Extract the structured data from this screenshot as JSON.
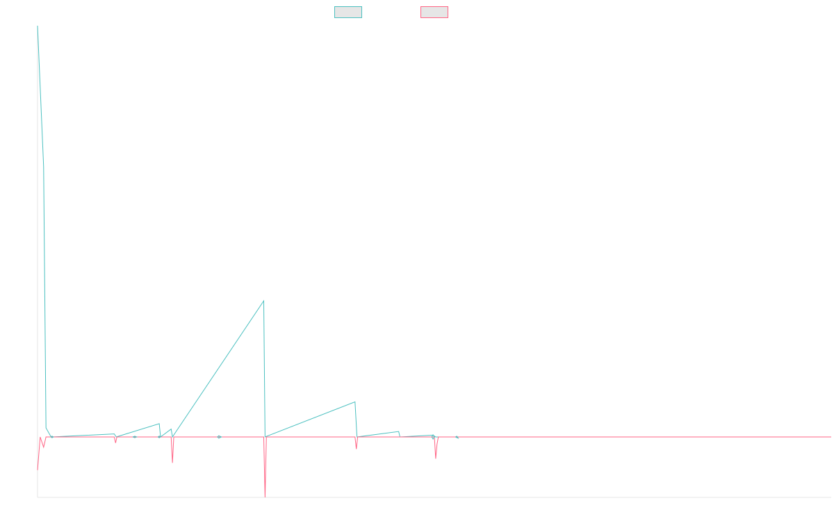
{
  "chart_data": {
    "type": "line",
    "title": "",
    "xlabel": "",
    "ylabel": "",
    "legend": {
      "placement": "top-center",
      "entries": [
        {
          "label": "",
          "color": "#4bc0c0",
          "fill": "#e6e6e6"
        },
        {
          "label": "",
          "color": "#ff6384",
          "fill": "#e6e6e6"
        }
      ]
    },
    "grid": false,
    "x_range": [
      0,
      600
    ],
    "y_range": [
      -100,
      680
    ],
    "series": [
      {
        "color": "#4bc0c0",
        "points": [
          [
            0,
            680
          ],
          [
            4.6,
            447
          ],
          [
            6.4,
            15
          ],
          [
            10,
            1
          ],
          [
            11,
            0
          ],
          [
            58,
            5
          ],
          [
            59.5,
            0
          ],
          [
            92,
            22
          ],
          [
            93,
            0
          ],
          [
            101,
            13
          ],
          [
            102,
            0
          ],
          [
            171,
            225
          ],
          [
            172,
            0
          ],
          [
            240,
            58
          ],
          [
            241.5,
            0
          ],
          [
            273,
            9
          ],
          [
            274,
            0
          ],
          [
            299,
            3
          ],
          [
            301,
            0
          ],
          [
            600,
            0
          ]
        ]
      },
      {
        "color": "#ff6384",
        "points": [
          [
            0,
            -55
          ],
          [
            2,
            0
          ],
          [
            4.6,
            -17
          ],
          [
            6.4,
            0
          ],
          [
            58,
            0
          ],
          [
            59,
            -10
          ],
          [
            60,
            0
          ],
          [
            101,
            0
          ],
          [
            102,
            -43
          ],
          [
            103,
            0
          ],
          [
            171,
            0
          ],
          [
            172,
            -100
          ],
          [
            173,
            0
          ],
          [
            240,
            0
          ],
          [
            241,
            -20
          ],
          [
            242,
            0
          ],
          [
            300,
            0
          ],
          [
            301,
            -36
          ],
          [
            302,
            -12
          ],
          [
            303,
            0
          ],
          [
            600,
            0
          ]
        ]
      },
      {
        "color": "#4bc0c0",
        "role": "small-loop",
        "points": [
          [
            10,
            0
          ],
          [
            11,
            1.3
          ],
          [
            12,
            0
          ],
          [
            11,
            -1.3
          ],
          [
            10,
            0
          ]
        ]
      },
      {
        "color": "#4bc0c0",
        "role": "small-loop",
        "points": [
          [
            72,
            0
          ],
          [
            73.5,
            1.2
          ],
          [
            75,
            0
          ],
          [
            73.5,
            -1.2
          ],
          [
            72,
            0
          ]
        ]
      },
      {
        "color": "#4bc0c0",
        "role": "small-loop",
        "points": [
          [
            91,
            0
          ],
          [
            92,
            1.5
          ],
          [
            93,
            0
          ],
          [
            92,
            -1.5
          ],
          [
            91,
            0
          ]
        ]
      },
      {
        "color": "#4bc0c0",
        "role": "small-loop",
        "points": [
          [
            136,
            0
          ],
          [
            137,
            2
          ],
          [
            139,
            0
          ],
          [
            137,
            -2
          ],
          [
            136,
            0
          ]
        ]
      },
      {
        "color": "#4bc0c0",
        "role": "small-loop",
        "points": [
          [
            298,
            0
          ],
          [
            299,
            3.5
          ],
          [
            300,
            0
          ],
          [
            299,
            -3.5
          ],
          [
            298,
            0
          ]
        ]
      },
      {
        "color": "#4bc0c0",
        "role": "small-loop",
        "points": [
          [
            316,
            0
          ],
          [
            317,
            1.2
          ],
          [
            318,
            -2
          ],
          [
            317,
            -1.2
          ],
          [
            316,
            0
          ]
        ]
      }
    ]
  }
}
